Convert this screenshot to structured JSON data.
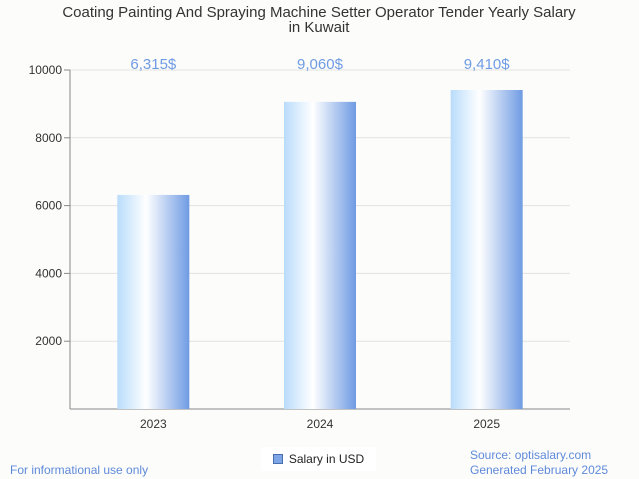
{
  "chart_data": {
    "type": "bar",
    "title_lines": [
      "Coating Painting And Spraying Machine Setter Operator Tender Yearly Salary",
      "in Kuwait"
    ],
    "categories": [
      "2023",
      "2024",
      "2025"
    ],
    "series": [
      {
        "name": "Salary in USD",
        "values": [
          6315,
          9060,
          9410
        ]
      }
    ],
    "value_labels": [
      "6,315$",
      "9,060$",
      "9,410$"
    ],
    "ylim": [
      0,
      10000
    ],
    "yticks": [
      2000,
      4000,
      6000,
      8000,
      10000
    ],
    "xlabel": "",
    "ylabel": "",
    "legend_position": "bottom-center",
    "grid": true
  },
  "footer": {
    "left": "For informational use only",
    "source": "Source: optisalary.com",
    "generated": "Generated February 2025"
  },
  "colors": {
    "bar_light": "#ffffff",
    "bar_mid": "#b9dcfb",
    "bar_dark": "#6f9be3",
    "label": "#6f9be3",
    "footer": "#5f8ad9"
  }
}
